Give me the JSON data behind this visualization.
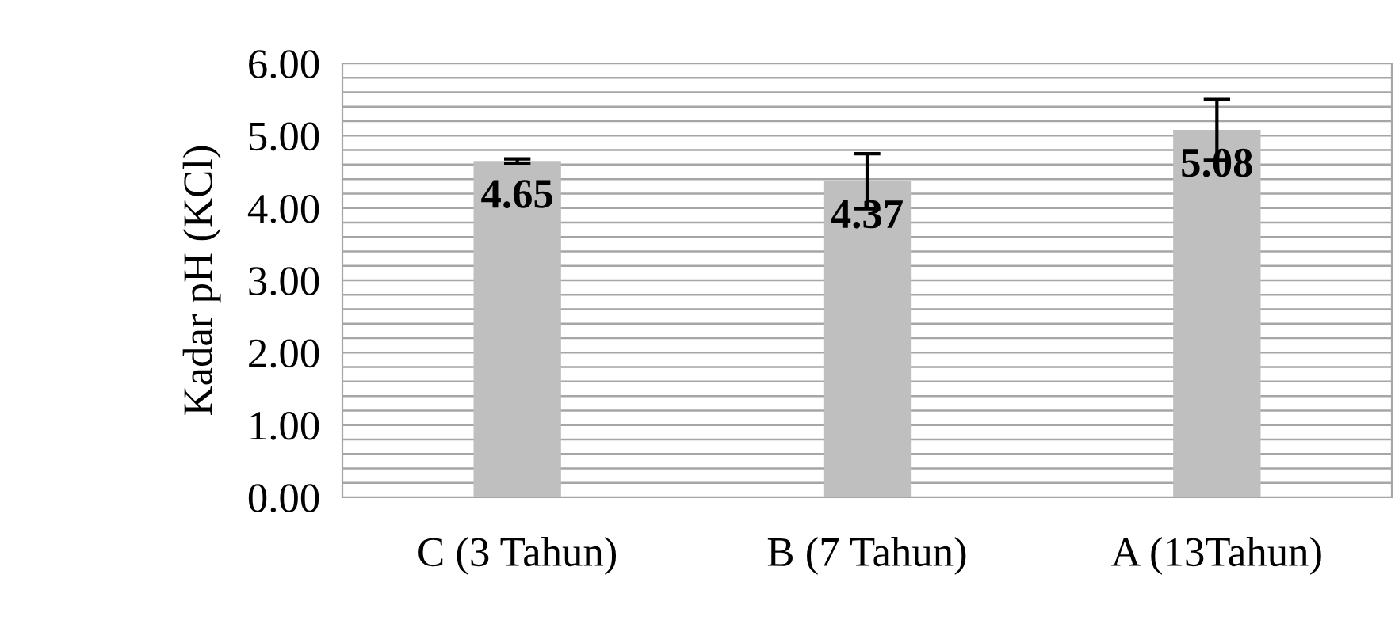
{
  "chart_data": {
    "type": "bar",
    "ylabel": "Kadar pH (KCl)",
    "categories": [
      "C (3 Tahun)",
      "B (7 Tahun)",
      "A (13Tahun)"
    ],
    "values": [
      4.65,
      4.37,
      5.08
    ],
    "color": "#bfbfbf",
    "errors": [
      0.03,
      0.38,
      0.42
    ],
    "data_labels": true,
    "ylim": [
      0,
      6
    ],
    "yticks": [
      {
        "value": 0,
        "label": "0.00"
      },
      {
        "value": 0.2,
        "label": null
      },
      {
        "value": 0.4,
        "label": null
      },
      {
        "value": 0.6,
        "label": null
      },
      {
        "value": 0.8,
        "label": null
      },
      {
        "value": 1,
        "label": "1.00"
      },
      {
        "value": 1.2,
        "label": null
      },
      {
        "value": 1.4,
        "label": null
      },
      {
        "value": 1.6,
        "label": null
      },
      {
        "value": 1.8,
        "label": null
      },
      {
        "value": 2,
        "label": "2.00"
      },
      {
        "value": 2.2,
        "label": null
      },
      {
        "value": 2.4,
        "label": null
      },
      {
        "value": 2.6,
        "label": null
      },
      {
        "value": 2.8,
        "label": null
      },
      {
        "value": 3,
        "label": "3.00"
      },
      {
        "value": 3.2,
        "label": null
      },
      {
        "value": 3.4,
        "label": null
      },
      {
        "value": 3.6,
        "label": null
      },
      {
        "value": 3.8,
        "label": null
      },
      {
        "value": 4,
        "label": "4.00"
      },
      {
        "value": 4.2,
        "label": null
      },
      {
        "value": 4.4,
        "label": null
      },
      {
        "value": 4.6,
        "label": null
      },
      {
        "value": 4.8,
        "label": null
      },
      {
        "value": 5,
        "label": "5.00"
      },
      {
        "value": 5.2,
        "label": null
      },
      {
        "value": 5.4,
        "label": null
      },
      {
        "value": 5.6,
        "label": null
      },
      {
        "value": 5.8,
        "label": null
      },
      {
        "value": 6,
        "label": "6.00"
      }
    ],
    "grid": "y"
  }
}
